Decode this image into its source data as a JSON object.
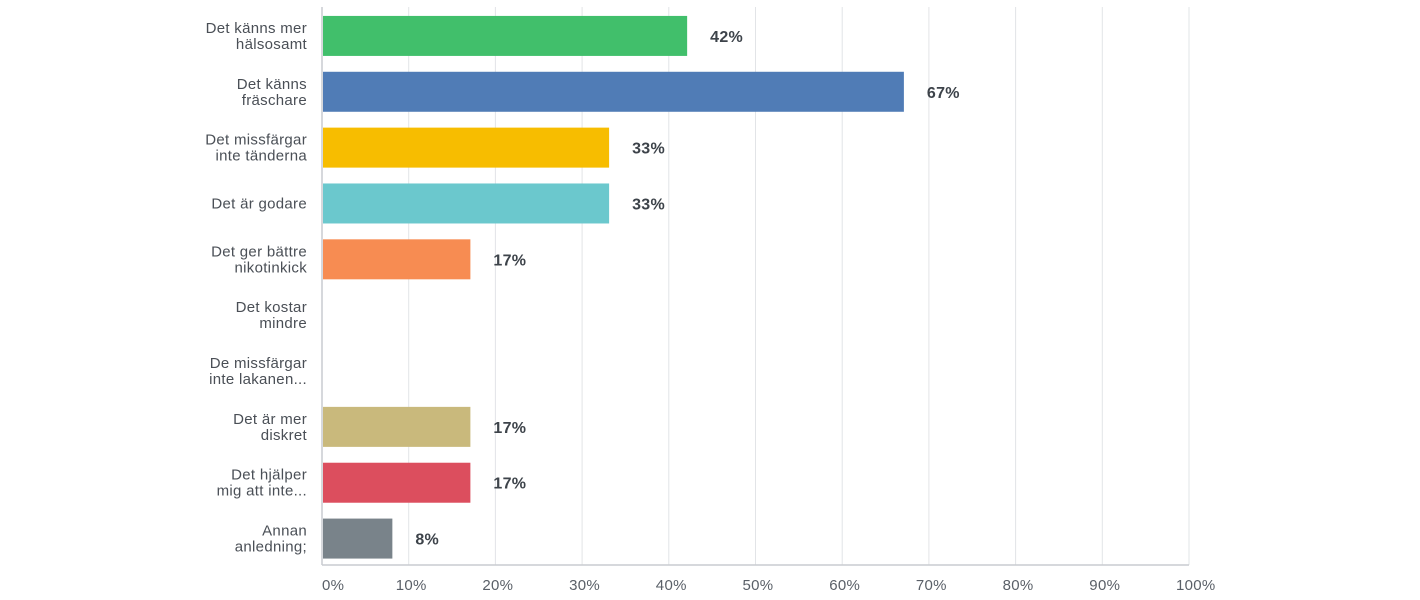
{
  "chart_data": {
    "type": "bar",
    "orientation": "horizontal",
    "categories": [
      [
        "Det känns mer",
        "hälsosamt"
      ],
      [
        "Det känns",
        "fräschare"
      ],
      [
        "Det missfärgar",
        "inte tänderna"
      ],
      [
        "Det är godare"
      ],
      [
        "Det ger bättre",
        "nikotinkick"
      ],
      [
        "Det kostar",
        "mindre"
      ],
      [
        "De missfärgar",
        "inte lakanen..."
      ],
      [
        "Det är mer",
        "diskret"
      ],
      [
        "Det hjälper",
        "mig att inte..."
      ],
      [
        "Annan",
        "anledning;"
      ]
    ],
    "values": [
      42,
      67,
      33,
      33,
      17,
      0,
      0,
      17,
      17,
      8
    ],
    "value_labels": [
      "42%",
      "67%",
      "33%",
      "33%",
      "17%",
      "",
      "",
      "17%",
      "17%",
      "8%"
    ],
    "colors": [
      "#41bf6b",
      "#507cb6",
      "#f7bd00",
      "#6bc8cd",
      "#f78c52",
      "#b094d2",
      "#8fbbd8",
      "#c9b97c",
      "#dc4e5e",
      "#79838a"
    ],
    "xlim": [
      0,
      100
    ],
    "ticks": [
      "0%",
      "10%",
      "20%",
      "30%",
      "40%",
      "50%",
      "60%",
      "70%",
      "80%",
      "90%",
      "100%"
    ],
    "grid": true,
    "title": "",
    "xlabel": "",
    "ylabel": ""
  }
}
